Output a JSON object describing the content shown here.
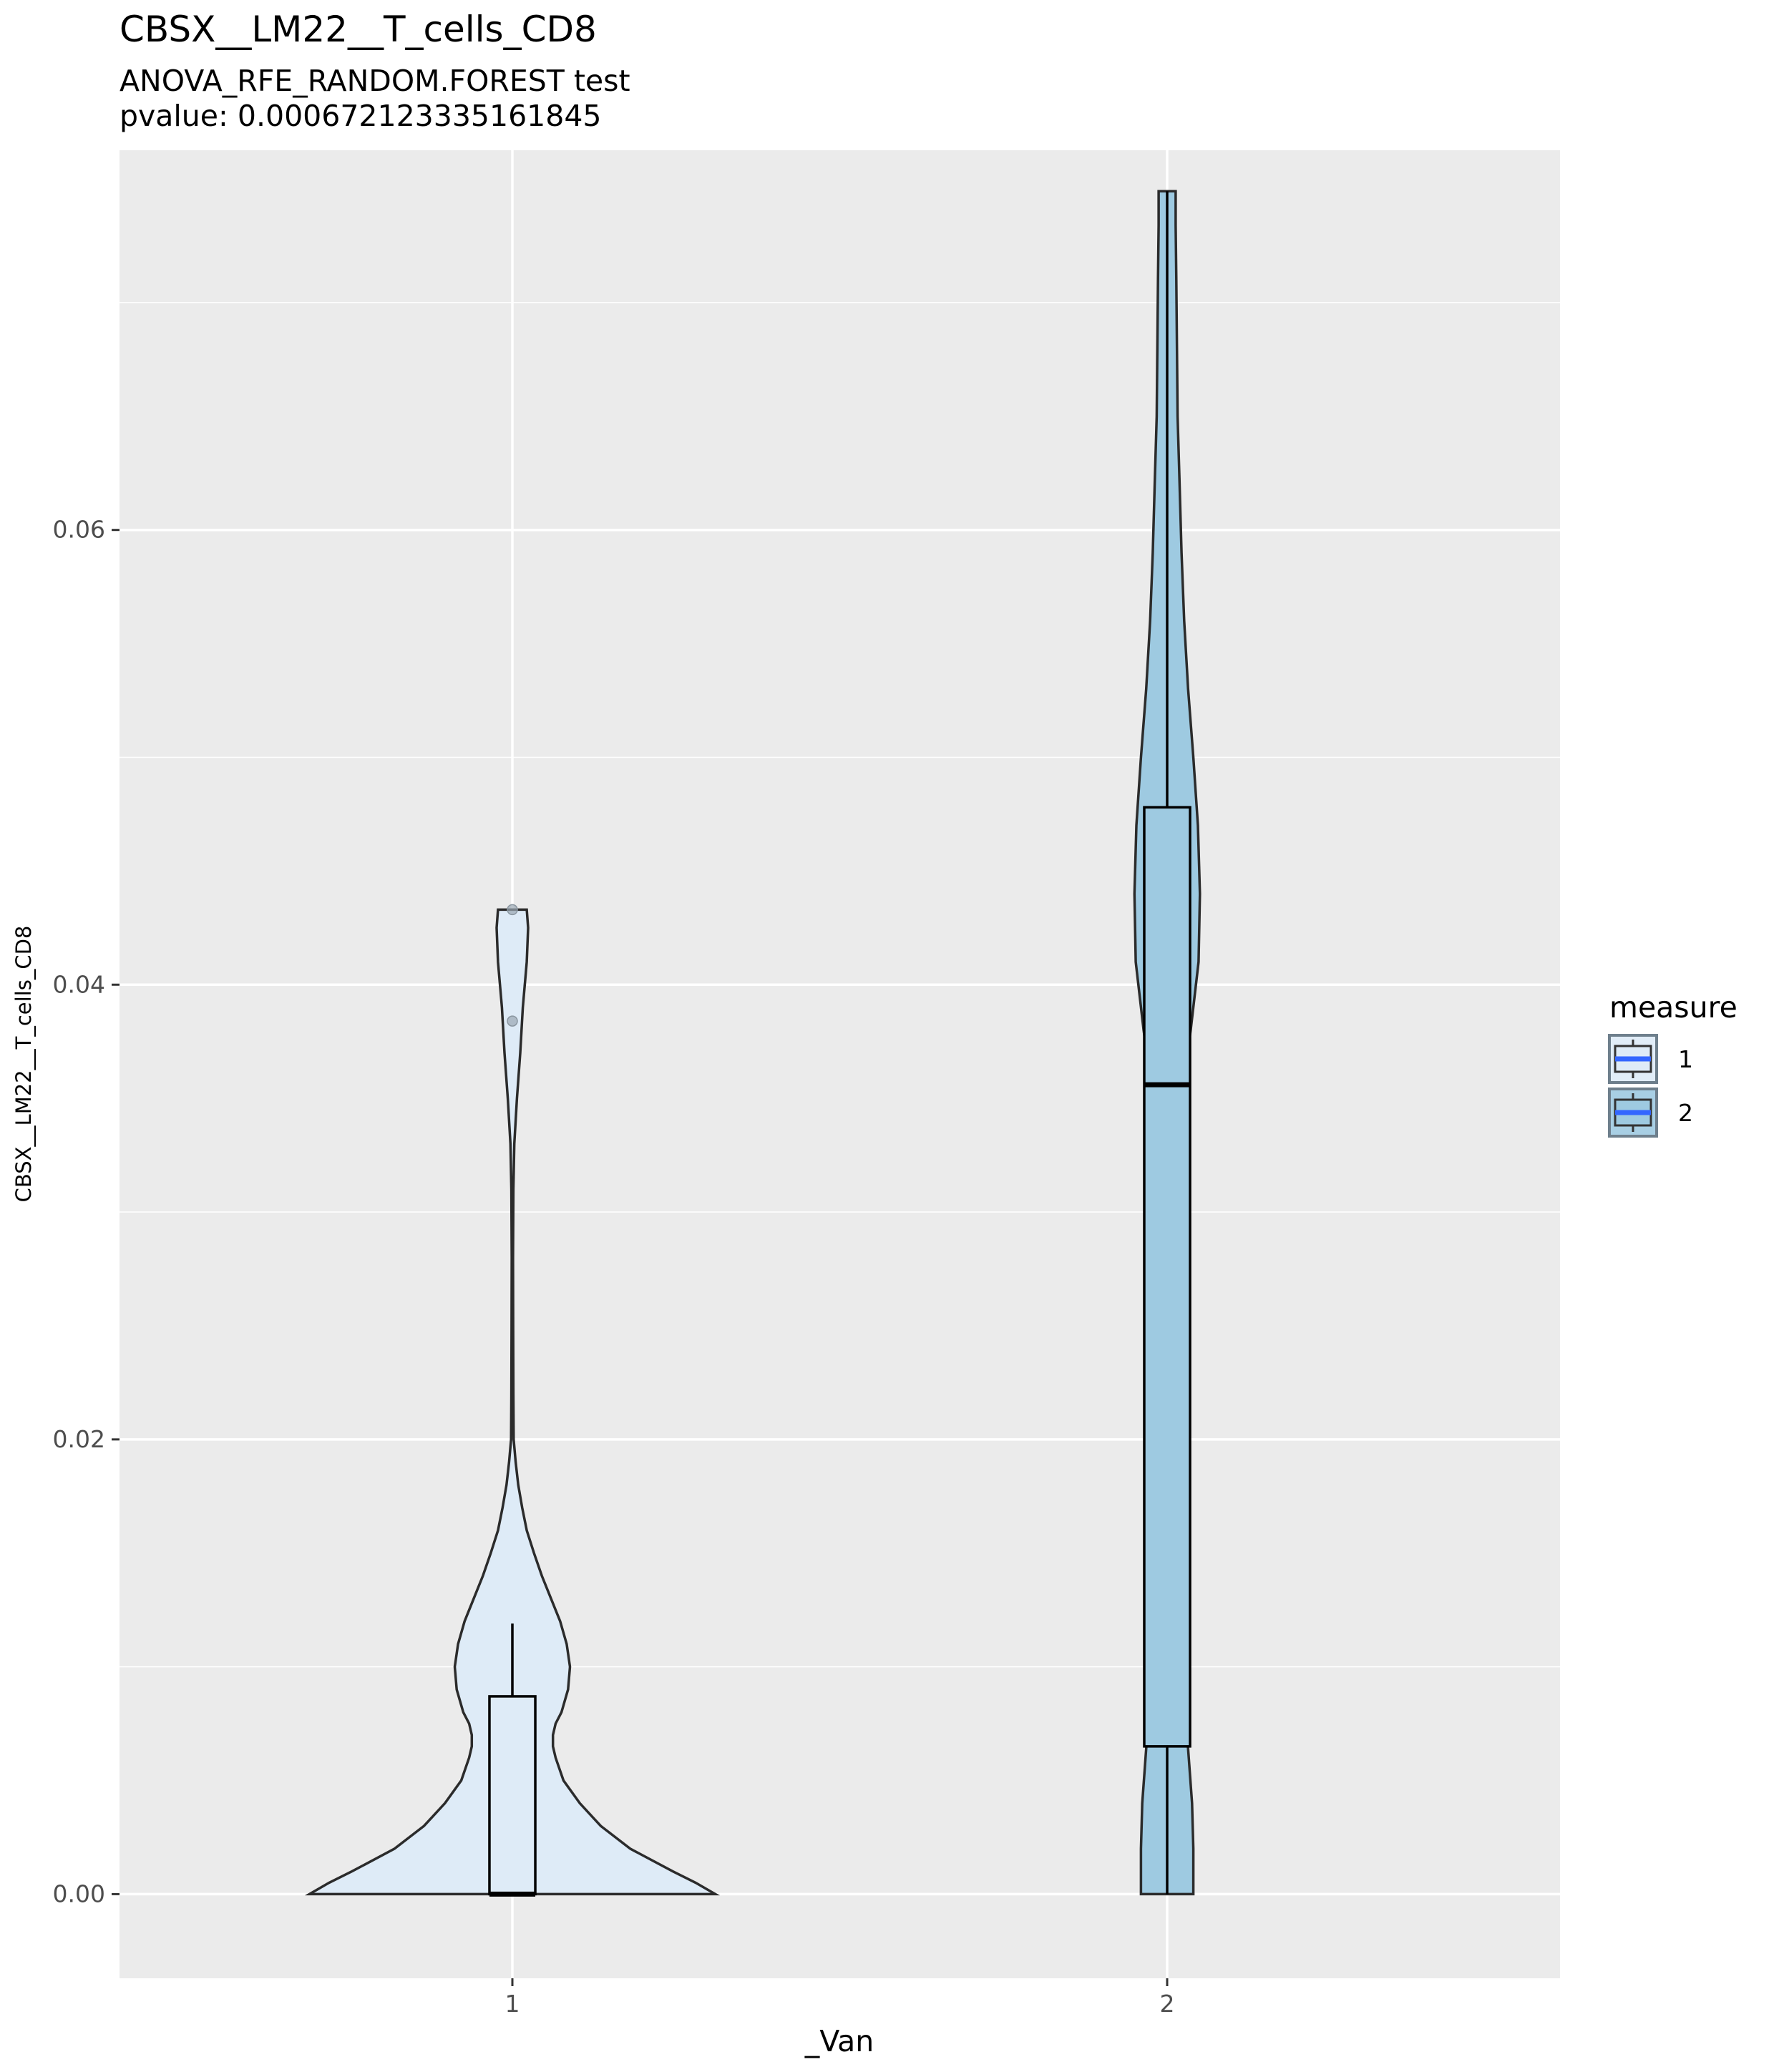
{
  "chart_data": {
    "type": "violin",
    "title": "CBSX__LM22__T_cells_CD8",
    "subtitle_line1": "ANOVA_RFE_RANDOM.FOREST test",
    "subtitle_line2": "pvalue: 0.000672123335161845",
    "xlabel": "_Van",
    "ylabel": "CBSX__LM22__T_cells_CD8",
    "categories": [
      "1",
      "2"
    ],
    "ylim": [
      -0.0037,
      0.0767
    ],
    "yticks": [
      0.0,
      0.02,
      0.04,
      0.06
    ],
    "ytick_labels": [
      "0.00",
      "0.02",
      "0.04",
      "0.06"
    ],
    "grid": true,
    "background": "#EBEBEB",
    "legend": {
      "title": "measure",
      "placement": "right",
      "entries": [
        {
          "label": "1",
          "fill": "#DEEBF7"
        },
        {
          "label": "2",
          "fill": "#9ECAE1"
        }
      ],
      "median_color": "#3366FF"
    },
    "series": [
      {
        "name": "1",
        "fill": "#DEEBF7",
        "violin": {
          "y": [
            0,
            0.0005,
            0.001,
            0.002,
            0.003,
            0.004,
            0.005,
            0.006,
            0.0065,
            0.007,
            0.0075,
            0.008,
            0.009,
            0.01,
            0.011,
            0.012,
            0.013,
            0.014,
            0.015,
            0.016,
            0.017,
            0.018,
            0.019,
            0.02,
            0.022,
            0.025,
            0.028,
            0.031,
            0.033,
            0.035,
            0.037,
            0.039,
            0.041,
            0.0425,
            0.0433
          ],
          "half_width": [
            0.31,
            0.28,
            0.245,
            0.18,
            0.135,
            0.103,
            0.078,
            0.066,
            0.062,
            0.062,
            0.066,
            0.075,
            0.085,
            0.088,
            0.083,
            0.073,
            0.059,
            0.045,
            0.033,
            0.022,
            0.015,
            0.009,
            0.005,
            0.002,
            0.0015,
            0.0012,
            0.001,
            0.0015,
            0.003,
            0.007,
            0.012,
            0.016,
            0.022,
            0.024,
            0.022
          ]
        },
        "box": {
          "min": 0.0,
          "q1": 0.0,
          "median": 0.0,
          "q3": 0.0087,
          "max": 0.0119
        },
        "outliers": [
          0.0384,
          0.0433
        ]
      },
      {
        "name": "2",
        "fill": "#9ECAE1",
        "violin": {
          "y": [
            0,
            0.002,
            0.004,
            0.006,
            0.008,
            0.01,
            0.015,
            0.02,
            0.025,
            0.03,
            0.035,
            0.038,
            0.041,
            0.044,
            0.047,
            0.05,
            0.053,
            0.056,
            0.059,
            0.062,
            0.065,
            0.068,
            0.071,
            0.0734,
            0.0749
          ],
          "half_width": [
            0.04,
            0.04,
            0.038,
            0.033,
            0.028,
            0.022,
            0.012,
            0.006,
            0.005,
            0.01,
            0.022,
            0.036,
            0.048,
            0.05,
            0.047,
            0.04,
            0.032,
            0.026,
            0.022,
            0.019,
            0.016,
            0.015,
            0.014,
            0.013,
            0.013
          ]
        },
        "box": {
          "min": 0.0,
          "q1": 0.0065,
          "median": 0.0356,
          "q3": 0.0478,
          "max": 0.0749
        },
        "outliers": []
      }
    ]
  }
}
